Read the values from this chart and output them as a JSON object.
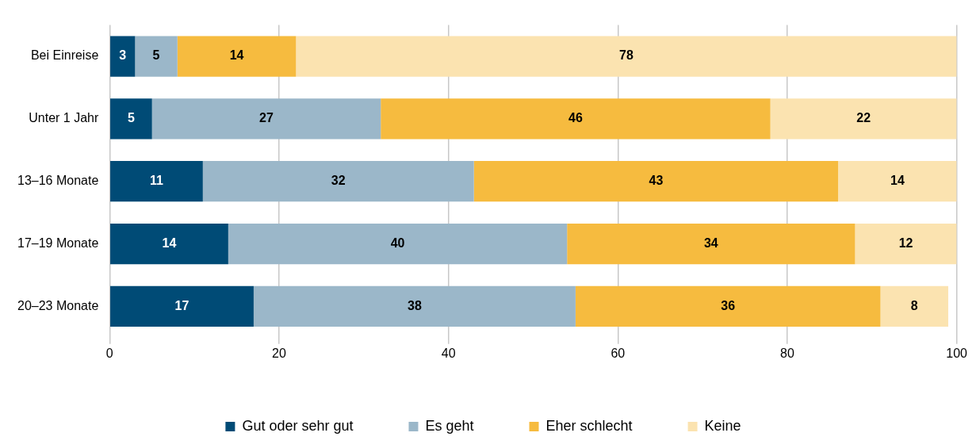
{
  "chart_data": {
    "type": "bar",
    "orientation": "horizontal",
    "stacked": true,
    "categories": [
      "Bei Einreise",
      "Unter 1 Jahr",
      "13–16 Monate",
      "17–19 Monate",
      "20–23 Monate"
    ],
    "series": [
      {
        "name": "Gut oder sehr gut",
        "color": "#004b76",
        "values": [
          3,
          5,
          11,
          14,
          17
        ]
      },
      {
        "name": "Es geht",
        "color": "#9bb7c9",
        "values": [
          5,
          27,
          32,
          40,
          38
        ]
      },
      {
        "name": "Eher schlecht",
        "color": "#f6bb3f",
        "values": [
          14,
          46,
          43,
          34,
          36
        ]
      },
      {
        "name": "Keine",
        "color": "#fbe3b0",
        "values": [
          78,
          22,
          14,
          12,
          8
        ]
      }
    ],
    "xlim": [
      0,
      100
    ],
    "xticks": [
      0,
      20,
      40,
      60,
      80,
      100
    ],
    "grid": "x",
    "legend": "bottom",
    "data_labels": true
  }
}
